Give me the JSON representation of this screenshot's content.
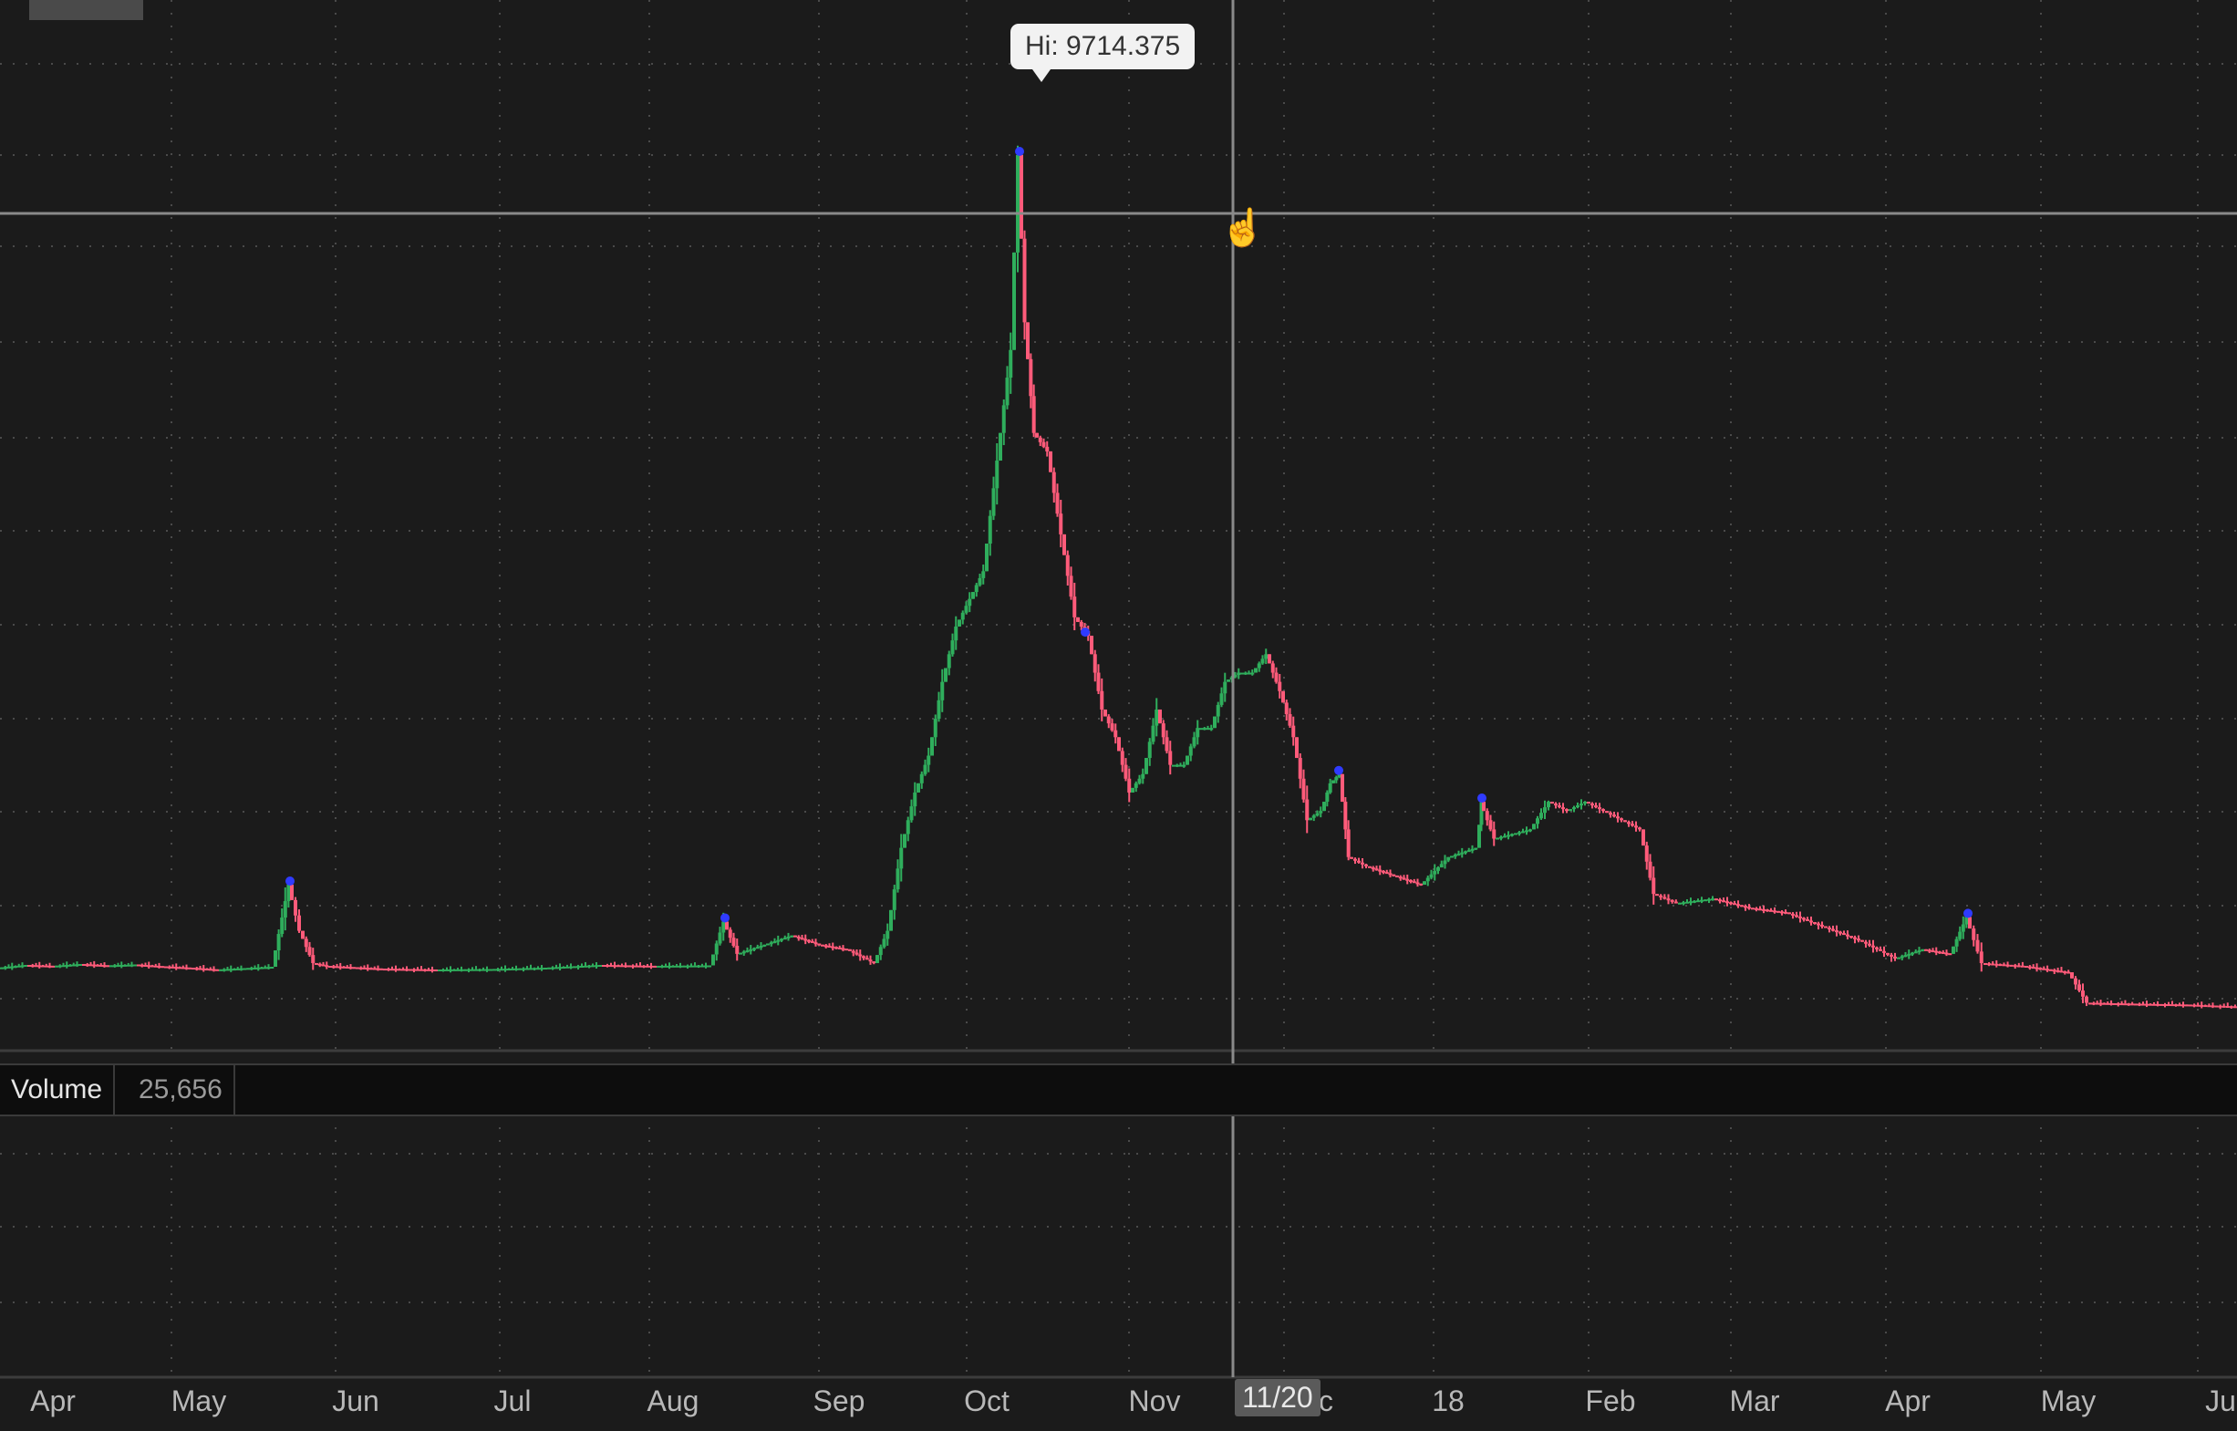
{
  "chart_data": {
    "type": "candlestick",
    "title": "",
    "xlabel": "",
    "ylabel": "",
    "grid": true,
    "x_tick_labels": [
      "Apr",
      "May",
      "Jun",
      "Jul",
      "Aug",
      "Sep",
      "Oct",
      "Nov",
      "c",
      "18",
      "Feb",
      "Mar",
      "Apr",
      "May",
      "Ju"
    ],
    "cursor_date": "11/20",
    "high_label": "Hi: 9714.375",
    "series": [
      {
        "values": [
          {
            "x": 0,
            "v": 900
          },
          {
            "x": 30,
            "v": 930
          },
          {
            "x": 60,
            "v": 920
          },
          {
            "x": 90,
            "v": 940
          },
          {
            "x": 120,
            "v": 925
          },
          {
            "x": 150,
            "v": 935
          },
          {
            "x": 180,
            "v": 915
          },
          {
            "x": 210,
            "v": 900
          },
          {
            "x": 240,
            "v": 880
          },
          {
            "x": 270,
            "v": 895
          },
          {
            "x": 300,
            "v": 910
          },
          {
            "x": 318,
            "v": 1800
          },
          {
            "x": 330,
            "v": 1300
          },
          {
            "x": 345,
            "v": 950
          },
          {
            "x": 360,
            "v": 920
          },
          {
            "x": 390,
            "v": 905
          },
          {
            "x": 420,
            "v": 890
          },
          {
            "x": 480,
            "v": 880
          },
          {
            "x": 540,
            "v": 885
          },
          {
            "x": 600,
            "v": 900
          },
          {
            "x": 660,
            "v": 930
          },
          {
            "x": 720,
            "v": 920
          },
          {
            "x": 780,
            "v": 925
          },
          {
            "x": 795,
            "v": 1400
          },
          {
            "x": 810,
            "v": 1050
          },
          {
            "x": 840,
            "v": 1150
          },
          {
            "x": 870,
            "v": 1250
          },
          {
            "x": 900,
            "v": 1150
          },
          {
            "x": 930,
            "v": 1100
          },
          {
            "x": 960,
            "v": 950
          },
          {
            "x": 975,
            "v": 1300
          },
          {
            "x": 990,
            "v": 2200
          },
          {
            "x": 1005,
            "v": 2800
          },
          {
            "x": 1020,
            "v": 3200
          },
          {
            "x": 1035,
            "v": 4000
          },
          {
            "x": 1050,
            "v": 4600
          },
          {
            "x": 1065,
            "v": 4900
          },
          {
            "x": 1080,
            "v": 5200
          },
          {
            "x": 1095,
            "v": 6400
          },
          {
            "x": 1110,
            "v": 7600
          },
          {
            "x": 1118,
            "v": 9714
          },
          {
            "x": 1125,
            "v": 7900
          },
          {
            "x": 1135,
            "v": 6700
          },
          {
            "x": 1150,
            "v": 6500
          },
          {
            "x": 1165,
            "v": 5600
          },
          {
            "x": 1180,
            "v": 4700
          },
          {
            "x": 1195,
            "v": 4500
          },
          {
            "x": 1210,
            "v": 3700
          },
          {
            "x": 1225,
            "v": 3400
          },
          {
            "x": 1240,
            "v": 2800
          },
          {
            "x": 1255,
            "v": 3000
          },
          {
            "x": 1270,
            "v": 3700
          },
          {
            "x": 1285,
            "v": 3100
          },
          {
            "x": 1300,
            "v": 3100
          },
          {
            "x": 1315,
            "v": 3500
          },
          {
            "x": 1330,
            "v": 3500
          },
          {
            "x": 1345,
            "v": 4000
          },
          {
            "x": 1360,
            "v": 4100
          },
          {
            "x": 1375,
            "v": 4100
          },
          {
            "x": 1390,
            "v": 4300
          },
          {
            "x": 1405,
            "v": 3900
          },
          {
            "x": 1420,
            "v": 3400
          },
          {
            "x": 1435,
            "v": 2500
          },
          {
            "x": 1450,
            "v": 2600
          },
          {
            "x": 1460,
            "v": 2900
          },
          {
            "x": 1470,
            "v": 3000
          },
          {
            "x": 1480,
            "v": 2100
          },
          {
            "x": 1500,
            "v": 2000
          },
          {
            "x": 1530,
            "v": 1900
          },
          {
            "x": 1560,
            "v": 1800
          },
          {
            "x": 1590,
            "v": 2100
          },
          {
            "x": 1620,
            "v": 2200
          },
          {
            "x": 1625,
            "v": 2700
          },
          {
            "x": 1640,
            "v": 2300
          },
          {
            "x": 1660,
            "v": 2350
          },
          {
            "x": 1680,
            "v": 2400
          },
          {
            "x": 1700,
            "v": 2700
          },
          {
            "x": 1720,
            "v": 2600
          },
          {
            "x": 1740,
            "v": 2700
          },
          {
            "x": 1760,
            "v": 2600
          },
          {
            "x": 1780,
            "v": 2500
          },
          {
            "x": 1800,
            "v": 2400
          },
          {
            "x": 1815,
            "v": 1700
          },
          {
            "x": 1840,
            "v": 1600
          },
          {
            "x": 1880,
            "v": 1650
          },
          {
            "x": 1920,
            "v": 1550
          },
          {
            "x": 1960,
            "v": 1500
          },
          {
            "x": 2000,
            "v": 1350
          },
          {
            "x": 2040,
            "v": 1200
          },
          {
            "x": 2080,
            "v": 1000
          },
          {
            "x": 2110,
            "v": 1100
          },
          {
            "x": 2140,
            "v": 1050
          },
          {
            "x": 2158,
            "v": 1450
          },
          {
            "x": 2175,
            "v": 950
          },
          {
            "x": 2220,
            "v": 920
          },
          {
            "x": 2270,
            "v": 850
          },
          {
            "x": 2290,
            "v": 520
          },
          {
            "x": 2340,
            "v": 510
          },
          {
            "x": 2400,
            "v": 500
          },
          {
            "x": 2453,
            "v": 480
          }
        ]
      }
    ],
    "volume": {
      "label": "Volume",
      "value": "25,656"
    }
  },
  "colors": {
    "background": "#1b1b1b",
    "grid": "#4a4a4a",
    "up": "#2fae5c",
    "down": "#ff5b7a",
    "high_marker": "#2f3bff"
  }
}
